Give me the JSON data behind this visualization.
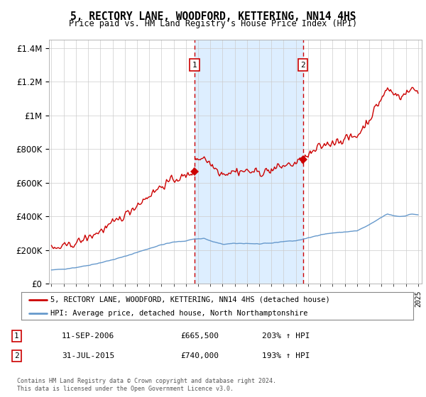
{
  "title": "5, RECTORY LANE, WOODFORD, KETTERING, NN14 4HS",
  "subtitle": "Price paid vs. HM Land Registry's House Price Index (HPI)",
  "legend_line1": "5, RECTORY LANE, WOODFORD, KETTERING, NN14 4HS (detached house)",
  "legend_line2": "HPI: Average price, detached house, North Northamptonshire",
  "footnote": "Contains HM Land Registry data © Crown copyright and database right 2024.\nThis data is licensed under the Open Government Licence v3.0.",
  "transaction1_label": "1",
  "transaction1_date": "11-SEP-2006",
  "transaction1_price": "£665,500",
  "transaction1_hpi": "203% ↑ HPI",
  "transaction2_label": "2",
  "transaction2_date": "31-JUL-2015",
  "transaction2_price": "£740,000",
  "transaction2_hpi": "193% ↑ HPI",
  "sale1_year": 2006.71,
  "sale1_price": 665500,
  "sale2_year": 2015.58,
  "sale2_price": 740000,
  "hpi_color": "#6699cc",
  "property_color": "#cc0000",
  "vline_color": "#cc0000",
  "highlight_color": "#ddeeff",
  "ylim_min": 0,
  "ylim_max": 1450000,
  "xlim_min": 1994.8,
  "xlim_max": 2025.3
}
